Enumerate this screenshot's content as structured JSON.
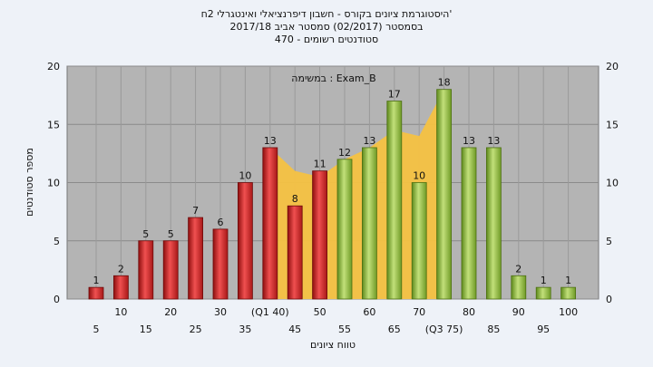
{
  "chart_data": {
    "type": "bar",
    "title_lines": [
      "היסטוגרמת ציונים בקורס - חשבון דיפרנציאלי ואינטגרלי 2ח'",
      "בסמסטר  (02/2017)  סמסטר אביב 2017/18",
      "סטודנטים רשומים - 470"
    ],
    "annotation": "במשימה : Exam_B",
    "xlabel": "טווח ציונים",
    "ylabel": "מספר סטודנטים",
    "ylim": [
      0,
      20
    ],
    "yticks": [
      0,
      5,
      10,
      15,
      20
    ],
    "grid": true,
    "categories": [
      "5",
      "10",
      "15",
      "20",
      "25",
      "30",
      "35",
      "(Q1 40)",
      "45",
      "50",
      "55",
      "60",
      "65",
      "70",
      "(Q3 75)",
      "80",
      "85",
      "90",
      "95",
      "100"
    ],
    "values": [
      1,
      2,
      5,
      5,
      7,
      6,
      10,
      13,
      8,
      11,
      12,
      13,
      17,
      10,
      18,
      13,
      13,
      2,
      1,
      1
    ],
    "bar_colors": [
      "#d42a2a",
      "#d42a2a",
      "#d42a2a",
      "#d42a2a",
      "#d42a2a",
      "#d42a2a",
      "#d42a2a",
      "#d42a2a",
      "#d42a2a",
      "#d42a2a",
      "#8fbf3f",
      "#8fbf3f",
      "#8fbf3f",
      "#8fbf3f",
      "#8fbf3f",
      "#8fbf3f",
      "#8fbf3f",
      "#8fbf3f",
      "#8fbf3f",
      "#8fbf3f"
    ],
    "area_series": {
      "x_categories": [
        "(Q1 40)",
        "45",
        "50",
        "55",
        "60",
        "65",
        "70",
        "(Q3 75)"
      ],
      "values": [
        13,
        11,
        10.5,
        12,
        13,
        14.5,
        14,
        18
      ],
      "color": "#f5c242"
    },
    "plot_background": "#b4b4b4",
    "page_background": "#eef2f8"
  }
}
